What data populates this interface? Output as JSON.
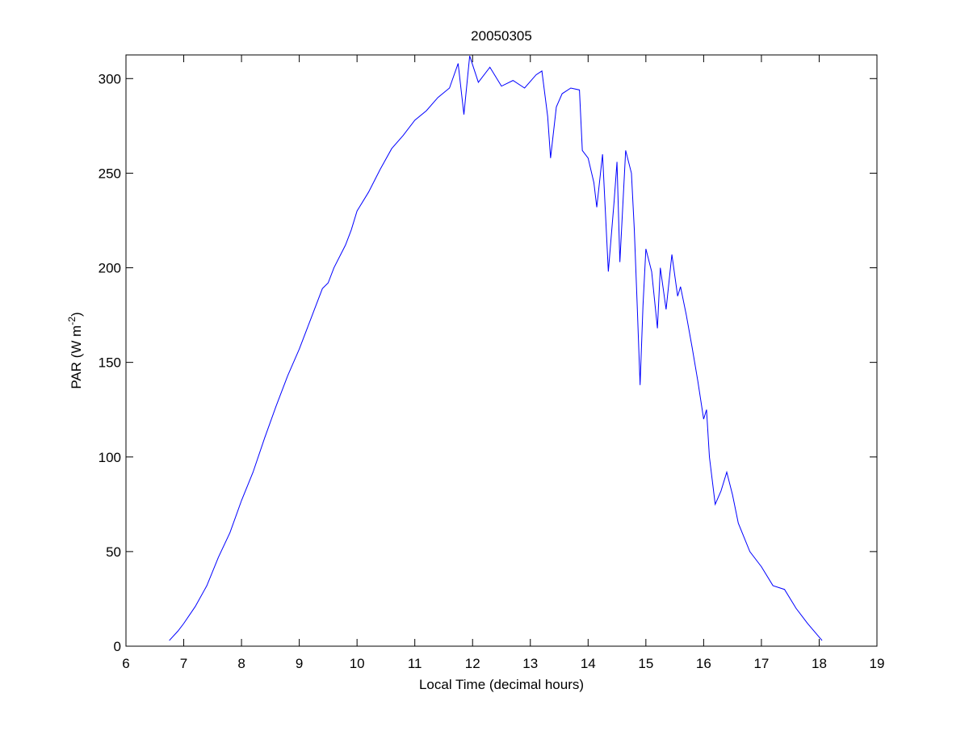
{
  "chart_data": {
    "type": "line",
    "title": "20050305",
    "xlabel": "Local Time (decimal hours)",
    "ylabel": [
      "PAR (W m",
      "-2",
      ")"
    ],
    "xlim": [
      6,
      19
    ],
    "xticks": [
      6,
      7,
      8,
      9,
      10,
      11,
      12,
      13,
      14,
      15,
      16,
      17,
      18,
      19
    ],
    "ylim": [
      0,
      312.5
    ],
    "yticks": [
      0,
      50,
      100,
      150,
      200,
      250,
      300
    ],
    "x": [
      6.75,
      6.9,
      7.0,
      7.2,
      7.4,
      7.6,
      7.8,
      8.0,
      8.2,
      8.4,
      8.6,
      8.8,
      9.0,
      9.2,
      9.4,
      9.5,
      9.6,
      9.8,
      9.9,
      10.0,
      10.2,
      10.4,
      10.6,
      10.8,
      11.0,
      11.2,
      11.4,
      11.6,
      11.75,
      11.85,
      11.95,
      12.1,
      12.3,
      12.5,
      12.7,
      12.9,
      13.1,
      13.2,
      13.3,
      13.35,
      13.45,
      13.55,
      13.7,
      13.85,
      13.9,
      14.0,
      14.1,
      14.15,
      14.25,
      14.35,
      14.45,
      14.5,
      14.55,
      14.65,
      14.75,
      14.8,
      14.85,
      14.9,
      14.95,
      15.0,
      15.1,
      15.2,
      15.25,
      15.35,
      15.45,
      15.55,
      15.6,
      15.7,
      15.8,
      15.9,
      16.0,
      16.05,
      16.1,
      16.2,
      16.3,
      16.4,
      16.5,
      16.6,
      16.8,
      17.0,
      17.2,
      17.4,
      17.6,
      17.8,
      18.05
    ],
    "series": [
      {
        "color": "#0000ff",
        "values": [
          3,
          8,
          12,
          21,
          32,
          47,
          60,
          77,
          92,
          110,
          127,
          143,
          157,
          173,
          189,
          192,
          200,
          212,
          220,
          230,
          240,
          252,
          263,
          270,
          278,
          283,
          290,
          295,
          308,
          281,
          312,
          298,
          306,
          296,
          299,
          295,
          302,
          304,
          280,
          258,
          285,
          292,
          295,
          294,
          262,
          258,
          245,
          232,
          260,
          198,
          235,
          256,
          203,
          262,
          250,
          220,
          180,
          138,
          180,
          210,
          198,
          168,
          200,
          178,
          207,
          185,
          190,
          175,
          158,
          140,
          120,
          125,
          100,
          75,
          82,
          92,
          80,
          65,
          50,
          42,
          32,
          30,
          20,
          12,
          3
        ]
      }
    ]
  }
}
